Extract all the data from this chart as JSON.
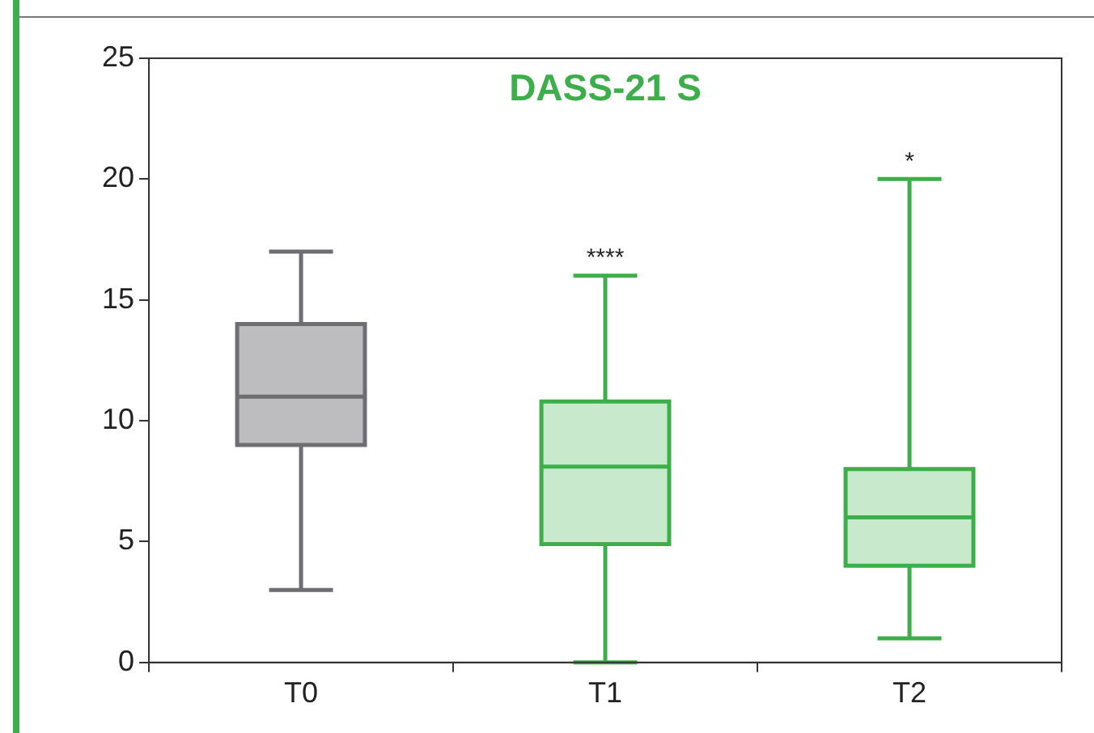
{
  "chart_data": {
    "type": "box",
    "title": "DASS-21 S",
    "categories": [
      "T0",
      "T1",
      "T2"
    ],
    "boxes": [
      {
        "low": 3,
        "q1": 9,
        "median": 11,
        "q3": 14,
        "high": 17
      },
      {
        "low": 0,
        "q1": 4.9,
        "median": 8.1,
        "q3": 10.8,
        "high": 16
      },
      {
        "low": 1,
        "q1": 4,
        "median": 6,
        "q3": 8,
        "high": 20
      }
    ],
    "colors": [
      "#6d6d72",
      "#3daf4a",
      "#3daf4a"
    ],
    "ylim": [
      0,
      25
    ],
    "yticks": [
      0,
      5,
      10,
      15,
      20,
      25
    ],
    "grid": false,
    "legend": false,
    "annotations": [
      {
        "text": "****",
        "x": "T1",
        "y": 16
      },
      {
        "text": "*",
        "x": "T2",
        "y": 20
      }
    ]
  }
}
